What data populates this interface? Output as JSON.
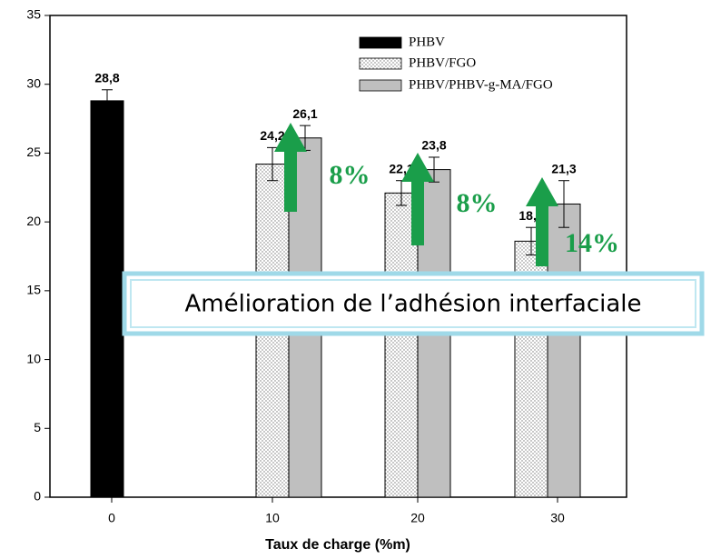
{
  "chart_data": {
    "type": "bar",
    "categories": [
      "0",
      "10",
      "20",
      "30"
    ],
    "series": [
      {
        "name": "PHBV",
        "color": "#000000",
        "values": [
          28.8,
          null,
          null,
          null
        ],
        "errors": [
          0.8,
          null,
          null,
          null
        ],
        "value_labels": [
          "28,8",
          null,
          null,
          null
        ]
      },
      {
        "name": "PHBV/FGO",
        "color": "dots",
        "values": [
          null,
          24.2,
          22.1,
          18.6
        ],
        "errors": [
          null,
          1.2,
          0.9,
          1.0
        ],
        "value_labels": [
          null,
          "24,2",
          "22,1",
          "18,6"
        ]
      },
      {
        "name": "PHBV/PHBV-g-MA/FGO",
        "color": "#bfbfbf",
        "values": [
          null,
          26.1,
          23.8,
          21.3
        ],
        "errors": [
          null,
          0.9,
          0.9,
          1.7
        ],
        "value_labels": [
          null,
          "26,1",
          "23,8",
          "21,3"
        ]
      }
    ],
    "xlabel": "Taux de charge (%m)",
    "ylim": [
      0,
      35
    ],
    "yticks": [
      0,
      5,
      10,
      15,
      20,
      25,
      30,
      35
    ],
    "legend": "upper right",
    "annotations": [
      "8%",
      "8%",
      "14%"
    ],
    "annotation_color": "#1a9e4a",
    "banner": "Amélioration de l’adhésion interfaciale"
  }
}
